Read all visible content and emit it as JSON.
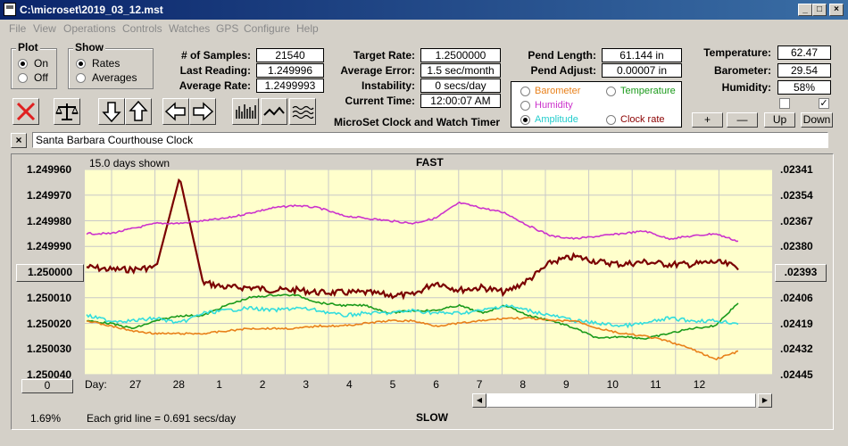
{
  "window": {
    "title": "C:\\microset\\2019_03_12.mst"
  },
  "menu": [
    "File",
    "View",
    "Operations",
    "Controls",
    "Watches",
    "GPS",
    "Configure",
    "Help"
  ],
  "plot_group": {
    "label": "Plot",
    "on": "On",
    "off": "Off",
    "selected": "On"
  },
  "show_group": {
    "label": "Show",
    "rates": "Rates",
    "averages": "Averages",
    "selected": "Rates"
  },
  "samples": {
    "label": "# of Samples:",
    "value": "21540"
  },
  "last_reading": {
    "label": "Last Reading:",
    "value": "1.249996"
  },
  "average_rate": {
    "label": "Average Rate:",
    "value": "1.2499993"
  },
  "target_rate": {
    "label": "Target Rate:",
    "value": "1.2500000"
  },
  "average_error": {
    "label": "Average Error:",
    "value": "1.5 sec/month"
  },
  "instability": {
    "label": "Instability:",
    "value": "0 secs/day"
  },
  "current_time": {
    "label": "Current Time:",
    "value": "12:00:07 AM"
  },
  "app_title": "MicroSet Clock and Watch Timer",
  "pend_length": {
    "label": "Pend Length:",
    "value": "61.144 in"
  },
  "pend_adjust": {
    "label": "Pend Adjust:",
    "value": "0.00007 in"
  },
  "temperature": {
    "label": "Temperature:",
    "value": "62.47"
  },
  "barometer_v": {
    "label": "Barometer:",
    "value": "29.54"
  },
  "humidity_v": {
    "label": "Humidity:",
    "value": "58%"
  },
  "aux_options": [
    {
      "label": "Barometer",
      "color": "#e8801a",
      "checked": false
    },
    {
      "label": "Temperature",
      "color": "#1a9a1a",
      "checked": false
    },
    {
      "label": "Humidity",
      "color": "#cc33cc",
      "checked": false
    },
    {
      "label": "Amplitude",
      "color": "#33dddd",
      "checked": true
    },
    {
      "label": "Clock rate",
      "color": "#8b0000",
      "checked": false
    }
  ],
  "step_buttons": {
    "plus": "+",
    "minus": "—",
    "up": "Up",
    "down": "Down"
  },
  "description": "Santa Barbara Courthouse Clock",
  "close_x": "×",
  "graph": {
    "days_shown": "15.0 days shown",
    "top_label": "FAST",
    "bottom_label": "SLOW",
    "grid_note": "Each grid line = 0.691 secs/day",
    "day_label": "Day:",
    "percent": "1.69%",
    "left_button": "1.250000",
    "right_button": ".02393",
    "zero_button": "0"
  },
  "chart_data": {
    "type": "line",
    "left_axis_ticks": [
      "1.249960",
      "1.249970",
      "1.249980",
      "1.249990",
      "1.250000",
      "1.250010",
      "1.250020",
      "1.250030",
      "1.250040"
    ],
    "right_axis_ticks": [
      ".02341",
      ".02354",
      ".02367",
      ".02380",
      ".02393",
      ".02406",
      ".02419",
      ".02432",
      ".02445"
    ],
    "x_ticks": [
      "27",
      "28",
      "1",
      "2",
      "3",
      "4",
      "5",
      "6",
      "7",
      "8",
      "9",
      "10",
      "11",
      "12"
    ],
    "ylim": [
      1.24996,
      1.25004
    ],
    "xlim": [
      0,
      15
    ],
    "grid": true,
    "series": [
      {
        "name": "Clock rate",
        "color": "#7a0000",
        "values": [
          1.249998,
          1.249999,
          1.249999,
          1.249998,
          1.249963,
          1.250004,
          1.250006,
          1.250006,
          1.250007,
          1.250007,
          1.250008,
          1.250008,
          1.250008,
          1.250009,
          1.250009,
          1.250004,
          1.250007,
          1.250006,
          1.250008,
          1.250003,
          1.249996,
          1.249994,
          1.249996,
          1.249997,
          1.249996,
          1.249997,
          1.249997,
          1.249996,
          1.249998
        ]
      },
      {
        "name": "Humidity",
        "color": "#cc33cc",
        "values": [
          1.249985,
          1.249985,
          1.249983,
          1.249981,
          1.249981,
          1.24998,
          1.249979,
          1.249977,
          1.249975,
          1.249974,
          1.249975,
          1.249978,
          1.249979,
          1.24998,
          1.249981,
          1.249979,
          1.249973,
          1.249975,
          1.249977,
          1.249982,
          1.249986,
          1.249987,
          1.249986,
          1.249985,
          1.249984,
          1.249987,
          1.249986,
          1.249985,
          1.249988
        ]
      },
      {
        "name": "Temperature",
        "color": "#1a9a1a",
        "values": [
          1.250019,
          1.25002,
          1.250022,
          1.250019,
          1.250017,
          1.250017,
          1.250013,
          1.25001,
          1.250009,
          1.250009,
          1.250012,
          1.250013,
          1.250013,
          1.250016,
          1.250015,
          1.250015,
          1.250013,
          1.250016,
          1.250013,
          1.250017,
          1.250019,
          1.250022,
          1.250026,
          1.250025,
          1.250026,
          1.250024,
          1.250022,
          1.250021,
          1.250012
        ]
      },
      {
        "name": "Amplitude",
        "color": "#33dddd",
        "values": [
          1.250017,
          1.250019,
          1.250019,
          1.250018,
          1.25002,
          1.250016,
          1.250015,
          1.250014,
          1.250015,
          1.250014,
          1.250015,
          1.250017,
          1.250016,
          1.250016,
          1.250015,
          1.250016,
          1.250016,
          1.250015,
          1.250013,
          1.250015,
          1.250017,
          1.250019,
          1.25002,
          1.250021,
          1.25002,
          1.250018,
          1.250019,
          1.250019,
          1.25002
        ]
      },
      {
        "name": "Barometer",
        "color": "#e8801a",
        "values": [
          1.250019,
          1.250021,
          1.250023,
          1.250024,
          1.250024,
          1.250024,
          1.250023,
          1.250022,
          1.250022,
          1.250022,
          1.250021,
          1.250021,
          1.25002,
          1.250019,
          1.250019,
          1.250021,
          1.25002,
          1.250019,
          1.250018,
          1.250018,
          1.250019,
          1.250019,
          1.250022,
          1.250024,
          1.250025,
          1.250027,
          1.25003,
          1.250034,
          1.250031
        ]
      }
    ]
  }
}
